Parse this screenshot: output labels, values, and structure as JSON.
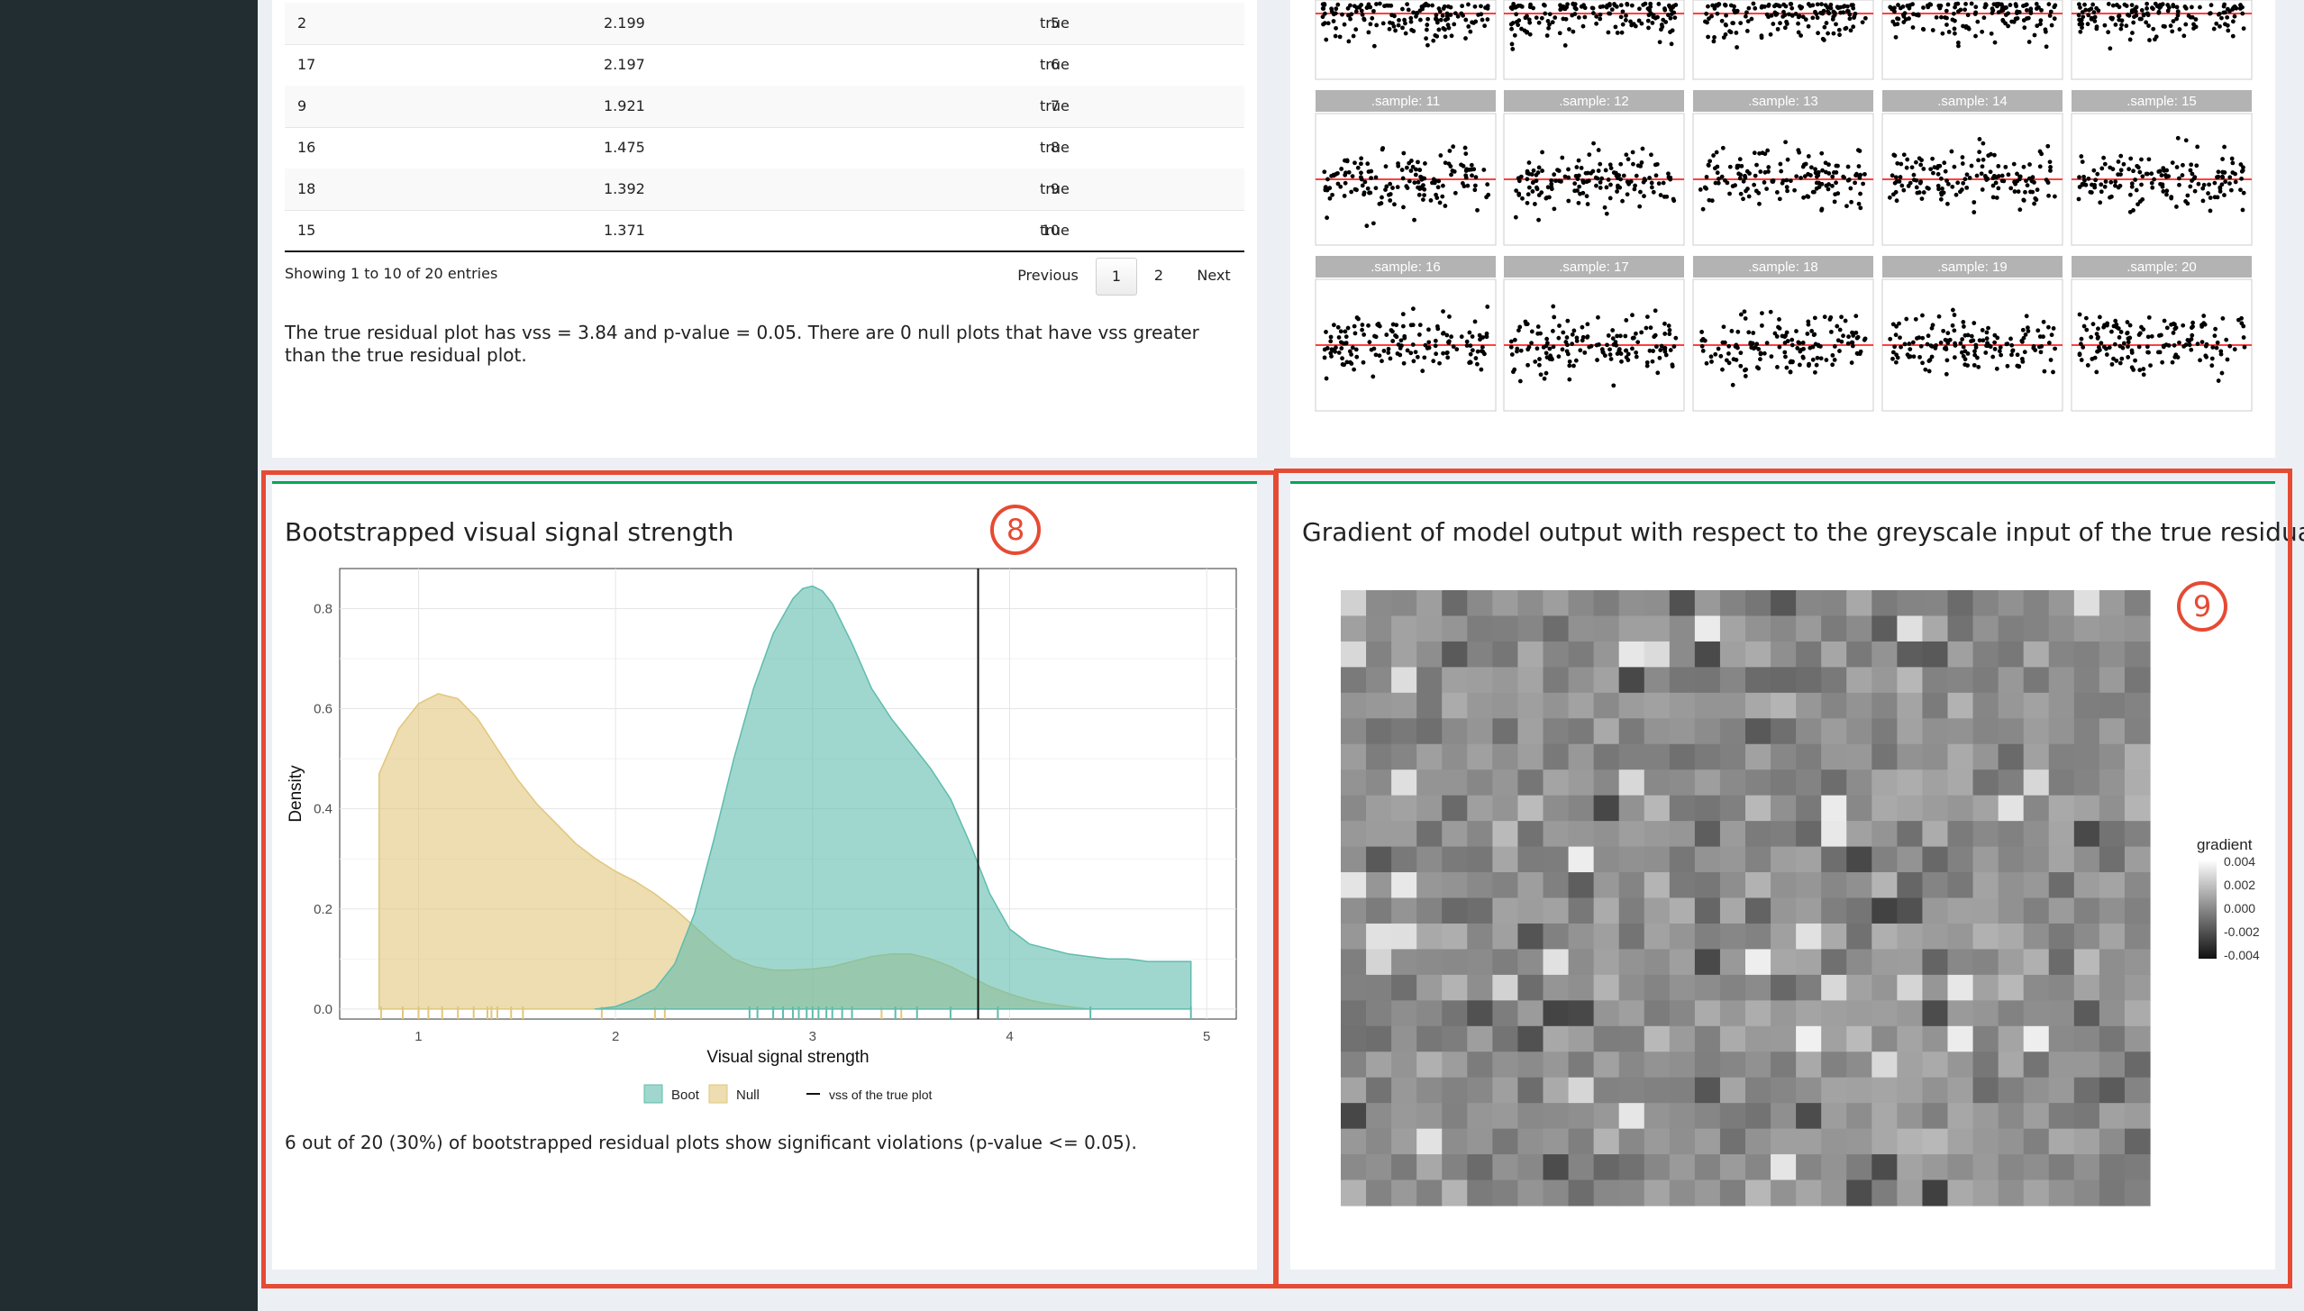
{
  "table": {
    "rows": [
      {
        "sample": "2",
        "vss": "2.199",
        "rank": "5",
        "significant": "true"
      },
      {
        "sample": "17",
        "vss": "2.197",
        "rank": "6",
        "significant": "true"
      },
      {
        "sample": "9",
        "vss": "1.921",
        "rank": "7",
        "significant": "true"
      },
      {
        "sample": "16",
        "vss": "1.475",
        "rank": "8",
        "significant": "true"
      },
      {
        "sample": "18",
        "vss": "1.392",
        "rank": "9",
        "significant": "true"
      },
      {
        "sample": "15",
        "vss": "1.371",
        "rank": "10",
        "significant": "true"
      }
    ],
    "info": "Showing 1 to 10 of 20 entries",
    "pager": {
      "previous": "Previous",
      "page1": "1",
      "page2": "2",
      "next": "Next"
    }
  },
  "summary_text": "The true residual plot has vss = 3.84 and p-value = 0.05. There are 0 null plots that have vss greater than the true residual plot.",
  "lineup": {
    "strip_labels": [
      ".sample: 11",
      ".sample: 12",
      ".sample: 13",
      ".sample: 14",
      ".sample: 15",
      ".sample: 16",
      ".sample: 17",
      ".sample: 18",
      ".sample: 19",
      ".sample: 20"
    ],
    "strip_color": "#b3b3b3",
    "ref_line_color": "#ff0000"
  },
  "vss_panel": {
    "title": "Bootstrapped visual signal strength",
    "badge": "8",
    "caption": "6 out of 20 (30%) of bootstrapped residual plots show significant violations (p-value <= 0.05)."
  },
  "gradient_panel": {
    "title": "Gradient of model output with respect to the greyscale input of the true residual plot",
    "badge": "9",
    "legend_title": "gradient",
    "legend_ticks": [
      "0.004",
      "0.002",
      "0.000",
      "-0.002",
      "-0.004"
    ]
  },
  "chart_data": {
    "type": "area",
    "title": "",
    "xlabel": "Visual signal strength",
    "ylabel": "Density",
    "xlim": [
      0.6,
      5.15
    ],
    "ylim": [
      -0.02,
      0.88
    ],
    "xticks": [
      "1",
      "2",
      "3",
      "4",
      "5"
    ],
    "yticks": [
      "0.0",
      "0.2",
      "0.4",
      "0.6",
      "0.8"
    ],
    "grid": true,
    "legend_position": "bottom",
    "vline": {
      "x": 3.84,
      "label": "vss of the true plot"
    },
    "series": [
      {
        "name": "Null",
        "color": "#e1c67b",
        "x": [
          0.8,
          0.9,
          1.0,
          1.1,
          1.2,
          1.3,
          1.4,
          1.5,
          1.6,
          1.7,
          1.8,
          1.9,
          2.0,
          2.1,
          2.2,
          2.3,
          2.4,
          2.5,
          2.6,
          2.7,
          2.8,
          2.9,
          3.0,
          3.1,
          3.2,
          3.3,
          3.4,
          3.5,
          3.6,
          3.7,
          3.8,
          3.9,
          4.0,
          4.1,
          4.2,
          4.3,
          4.4
        ],
        "y": [
          0.47,
          0.56,
          0.61,
          0.63,
          0.62,
          0.58,
          0.52,
          0.46,
          0.41,
          0.37,
          0.33,
          0.3,
          0.275,
          0.255,
          0.23,
          0.2,
          0.165,
          0.13,
          0.1,
          0.085,
          0.078,
          0.078,
          0.08,
          0.085,
          0.095,
          0.105,
          0.11,
          0.11,
          0.1,
          0.085,
          0.065,
          0.045,
          0.03,
          0.018,
          0.01,
          0.005,
          0.0
        ],
        "rug": [
          0.81,
          0.92,
          1.0,
          1.05,
          1.12,
          1.2,
          1.28,
          1.35,
          1.37,
          1.4,
          1.47,
          1.53,
          1.93,
          2.2,
          2.25,
          3.35,
          3.45
        ]
      },
      {
        "name": "Boot",
        "color": "#5fbcad",
        "x": [
          1.9,
          2.0,
          2.1,
          2.2,
          2.3,
          2.4,
          2.5,
          2.6,
          2.7,
          2.8,
          2.9,
          2.95,
          3.0,
          3.05,
          3.1,
          3.2,
          3.3,
          3.4,
          3.5,
          3.6,
          3.7,
          3.8,
          3.9,
          4.0,
          4.1,
          4.2,
          4.3,
          4.4,
          4.5,
          4.6,
          4.7,
          4.8,
          4.92
        ],
        "y": [
          0.0,
          0.005,
          0.02,
          0.04,
          0.09,
          0.19,
          0.34,
          0.5,
          0.64,
          0.75,
          0.82,
          0.84,
          0.845,
          0.835,
          0.81,
          0.73,
          0.64,
          0.58,
          0.53,
          0.48,
          0.42,
          0.33,
          0.23,
          0.16,
          0.13,
          0.12,
          0.11,
          0.105,
          0.1,
          0.1,
          0.095,
          0.095,
          0.095
        ],
        "rug": [
          2.68,
          2.72,
          2.8,
          2.85,
          2.9,
          2.93,
          2.97,
          3.0,
          3.03,
          3.07,
          3.1,
          3.15,
          3.2,
          3.42,
          3.53,
          3.7,
          3.94,
          4.41,
          4.92
        ]
      }
    ]
  }
}
